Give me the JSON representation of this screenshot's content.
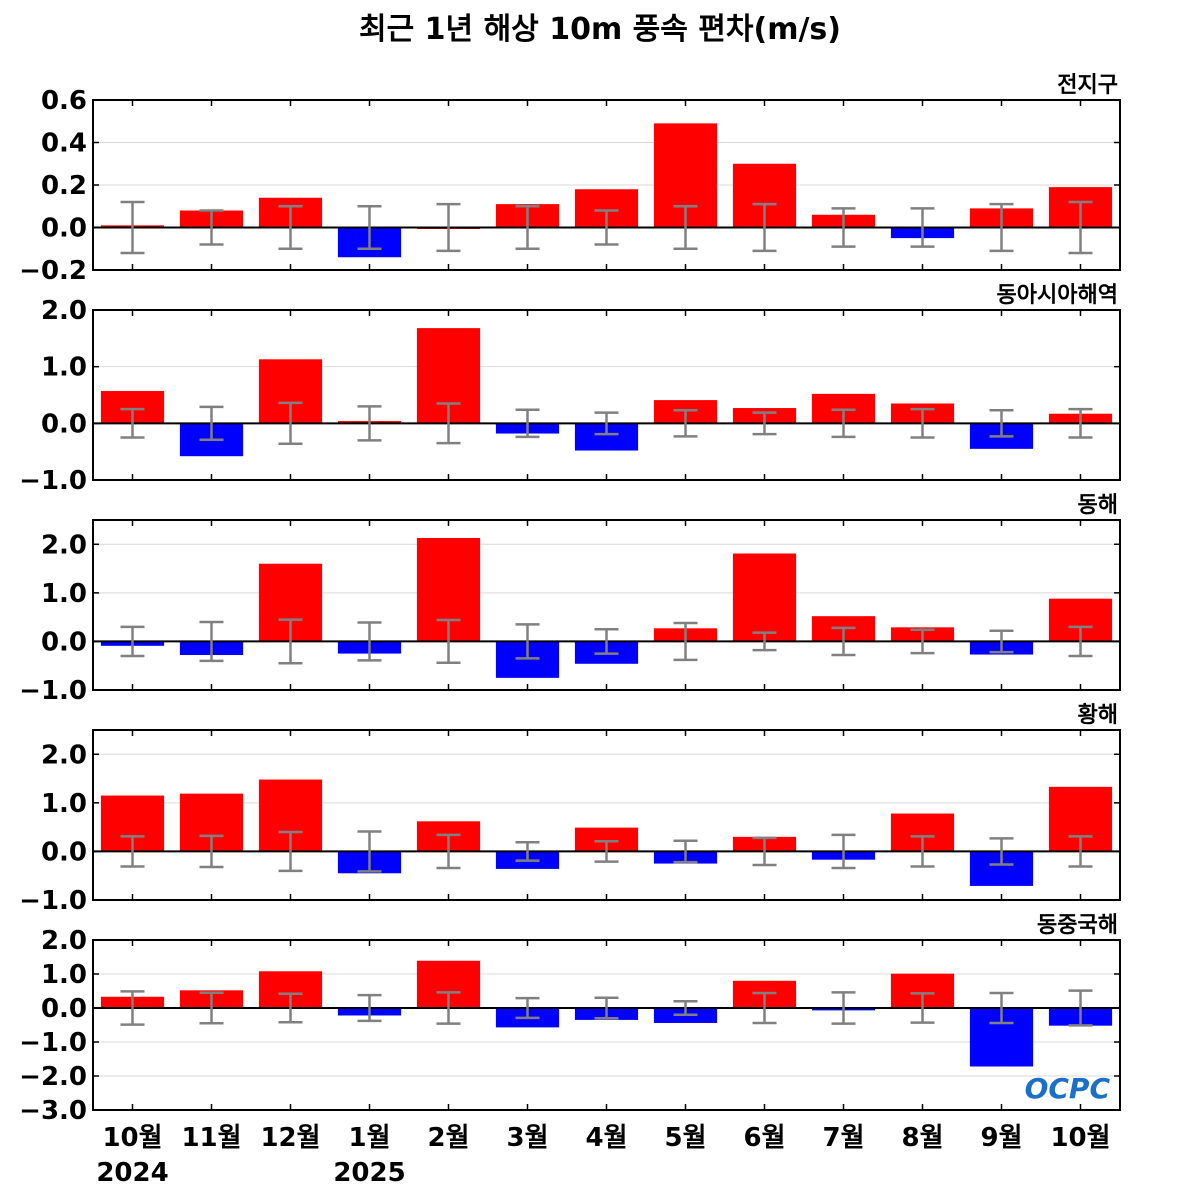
{
  "title": "최근 1년 해상 10m 풍속 편차(m/s)",
  "logo_text": "OCPC",
  "colors": {
    "positive": "#ff0000",
    "negative": "#0000ff",
    "errorbar": "#808080",
    "axis": "#000000",
    "grid": "#d9d9d9",
    "logo": "#1a6fc9"
  },
  "x_labels": [
    "10월",
    "11월",
    "12월",
    "1월",
    "2월",
    "3월",
    "4월",
    "5월",
    "6월",
    "7월",
    "8월",
    "9월",
    "10월"
  ],
  "year_labels": [
    {
      "index": 0,
      "text": "2024"
    },
    {
      "index": 3,
      "text": "2025"
    }
  ],
  "chart_data": [
    {
      "type": "bar",
      "title": "전지구",
      "categories": [
        "10월",
        "11월",
        "12월",
        "1월",
        "2월",
        "3월",
        "4월",
        "5월",
        "6월",
        "7월",
        "8월",
        "9월",
        "10월"
      ],
      "values": [
        0.01,
        0.08,
        0.14,
        -0.14,
        0.0,
        0.11,
        0.18,
        0.49,
        0.3,
        0.06,
        -0.05,
        0.09,
        0.19
      ],
      "error_range": [
        0.12,
        0.08,
        0.1,
        0.1,
        0.11,
        0.1,
        0.08,
        0.1,
        0.11,
        0.09,
        0.09,
        0.11,
        0.12
      ],
      "ylim": [
        -0.2,
        0.6
      ],
      "yticks": [
        -0.2,
        0.0,
        0.2,
        0.4,
        0.6
      ],
      "ytick_labels": [
        "−0.2",
        "0.0",
        "0.2",
        "0.4",
        "0.6"
      ],
      "grid": true
    },
    {
      "type": "bar",
      "title": "동아시아해역",
      "categories": [
        "10월",
        "11월",
        "12월",
        "1월",
        "2월",
        "3월",
        "4월",
        "5월",
        "6월",
        "7월",
        "8월",
        "9월",
        "10월"
      ],
      "values": [
        0.57,
        -0.58,
        1.13,
        0.04,
        1.68,
        -0.18,
        -0.48,
        0.41,
        0.27,
        0.52,
        0.35,
        -0.45,
        0.17
      ],
      "error_range": [
        0.25,
        0.29,
        0.36,
        0.3,
        0.35,
        0.24,
        0.19,
        0.23,
        0.19,
        0.24,
        0.25,
        0.23,
        0.25
      ],
      "ylim": [
        -1.0,
        2.0
      ],
      "yticks": [
        -1.0,
        0.0,
        1.0,
        2.0
      ],
      "ytick_labels": [
        "−1.0",
        "0.0",
        "1.0",
        "2.0"
      ],
      "grid": true
    },
    {
      "type": "bar",
      "title": "동해",
      "categories": [
        "10월",
        "11월",
        "12월",
        "1월",
        "2월",
        "3월",
        "4월",
        "5월",
        "6월",
        "7월",
        "8월",
        "9월",
        "10월"
      ],
      "values": [
        -0.09,
        -0.28,
        1.6,
        -0.25,
        2.13,
        -0.75,
        -0.46,
        0.27,
        1.81,
        0.52,
        0.29,
        -0.27,
        0.88
      ],
      "error_range": [
        0.3,
        0.4,
        0.45,
        0.39,
        0.44,
        0.35,
        0.25,
        0.38,
        0.18,
        0.28,
        0.24,
        0.22,
        0.3
      ],
      "ylim": [
        -1.0,
        2.5
      ],
      "yticks": [
        -1.0,
        0.0,
        1.0,
        2.0
      ],
      "ytick_labels": [
        "−1.0",
        "0.0",
        "1.0",
        "2.0"
      ],
      "grid": true
    },
    {
      "type": "bar",
      "title": "황해",
      "categories": [
        "10월",
        "11월",
        "12월",
        "1월",
        "2월",
        "3월",
        "4월",
        "5월",
        "6월",
        "7월",
        "8월",
        "9월",
        "10월"
      ],
      "values": [
        1.15,
        1.19,
        1.48,
        -0.45,
        0.62,
        -0.36,
        0.49,
        -0.25,
        0.3,
        -0.17,
        0.78,
        -0.71,
        1.33
      ],
      "error_range": [
        0.31,
        0.32,
        0.4,
        0.41,
        0.34,
        0.19,
        0.21,
        0.22,
        0.28,
        0.34,
        0.31,
        0.27,
        0.31
      ],
      "ylim": [
        -1.0,
        2.5
      ],
      "yticks": [
        -1.0,
        0.0,
        1.0,
        2.0
      ],
      "ytick_labels": [
        "−1.0",
        "0.0",
        "1.0",
        "2.0"
      ],
      "grid": true
    },
    {
      "type": "bar",
      "title": "동중국해",
      "categories": [
        "10월",
        "11월",
        "12월",
        "1월",
        "2월",
        "3월",
        "4월",
        "5월",
        "6월",
        "7월",
        "8월",
        "9월",
        "10월"
      ],
      "values": [
        0.33,
        0.52,
        1.08,
        -0.22,
        1.39,
        -0.57,
        -0.35,
        -0.44,
        0.8,
        -0.07,
        1.01,
        -1.72,
        -0.52
      ],
      "error_range": [
        0.49,
        0.45,
        0.42,
        0.38,
        0.46,
        0.29,
        0.3,
        0.2,
        0.44,
        0.46,
        0.43,
        0.44,
        0.51
      ],
      "ylim": [
        -3.0,
        2.0
      ],
      "yticks": [
        -3.0,
        -2.0,
        -1.0,
        0.0,
        1.0,
        2.0
      ],
      "ytick_labels": [
        "−3.0",
        "−2.0",
        "−1.0",
        "0.0",
        "1.0",
        "2.0"
      ],
      "grid": true
    }
  ]
}
